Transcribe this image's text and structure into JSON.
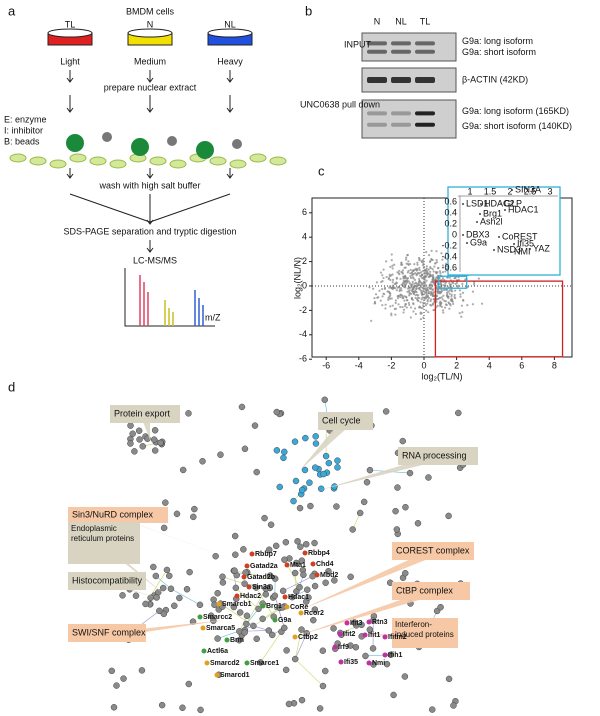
{
  "panel_a": {
    "label": "a",
    "title": "BMDM cells",
    "conditions": [
      {
        "name": "TL",
        "label": "Light"
      },
      {
        "name": "N",
        "label": "Medium"
      },
      {
        "name": "NL",
        "label": "Heavy"
      }
    ],
    "steps": [
      "prepare nuclear extract",
      "wash with high salt buffer",
      "SDS-PAGE separation and tryptic digestion",
      "LC-MS/MS"
    ],
    "legend": [
      "E: enzyme",
      "I: inhibitor",
      "B: beads"
    ],
    "axis_label": "m/Z"
  },
  "panel_b": {
    "label": "b",
    "lanes": [
      "N",
      "NL",
      "TL"
    ],
    "blots": [
      {
        "title": "INPUT",
        "bands": [
          "G9a: long isoform",
          "G9a: short isoform"
        ]
      },
      {
        "bands": [
          "β-ACTIN (42KD)"
        ]
      },
      {
        "title": "UNC0638 pull down",
        "bands": [
          "G9a: long isoform (165KD)",
          "G9a: short isoform (140KD)"
        ]
      }
    ]
  },
  "panel_c": {
    "label": "c",
    "xlabel": "log₂(TL/N)",
    "ylabel": "log₂(NL/N)",
    "xticks": [
      -6,
      -4,
      -2,
      0,
      2,
      4,
      6,
      8
    ],
    "yticks": [
      6,
      4,
      2,
      0,
      -2,
      -4,
      -6
    ],
    "inset_xticks": [
      "1",
      "1.5",
      "2",
      "2.5",
      "3"
    ],
    "inset_yticks": [
      "0.6",
      "0.4",
      "0.2",
      "0",
      "-0.2",
      "-0.4",
      "-0.6"
    ],
    "inset_labels": [
      "SIN3A",
      "LSD1",
      "HDAC2",
      "GLP",
      "HDAC1",
      "Brg1",
      "Ash2l",
      "DBX3",
      "CoREST",
      "G9a",
      "Ifi35",
      "NSD3",
      "NMI",
      "YAZ"
    ]
  },
  "panel_d": {
    "label": "d",
    "complexes": [
      "Protein export",
      "Cell cycle",
      "RNA processing",
      "Sin3/NuRD complex",
      "Endoplasmic reticulum proteins",
      "Histocompatibility",
      "SWI/SNF complex",
      "COREST complex",
      "CtBP complex",
      "Interferon-induced proteins"
    ],
    "genes": [
      "Rbbp7",
      "Rbbp4",
      "Gatad2a",
      "Mta1",
      "Chd4",
      "Gatad2b",
      "Mbd2",
      "Sin3a",
      "Hdac2",
      "Hdac1",
      "Smarcb1",
      "Brg1",
      "CoRe",
      "Smarcc2",
      "Rcor2",
      "G9a",
      "Smarca5",
      "Brm",
      "Ctbp2",
      "Actl6a",
      "Smarcd2",
      "Smarce1",
      "Smarcd1",
      "Ifit3",
      "Rtn3",
      "Ifit2",
      "Ifit1",
      "Ifitm2",
      "Irf9",
      "Ifih1",
      "Ifi35",
      "Nmi"
    ]
  }
}
